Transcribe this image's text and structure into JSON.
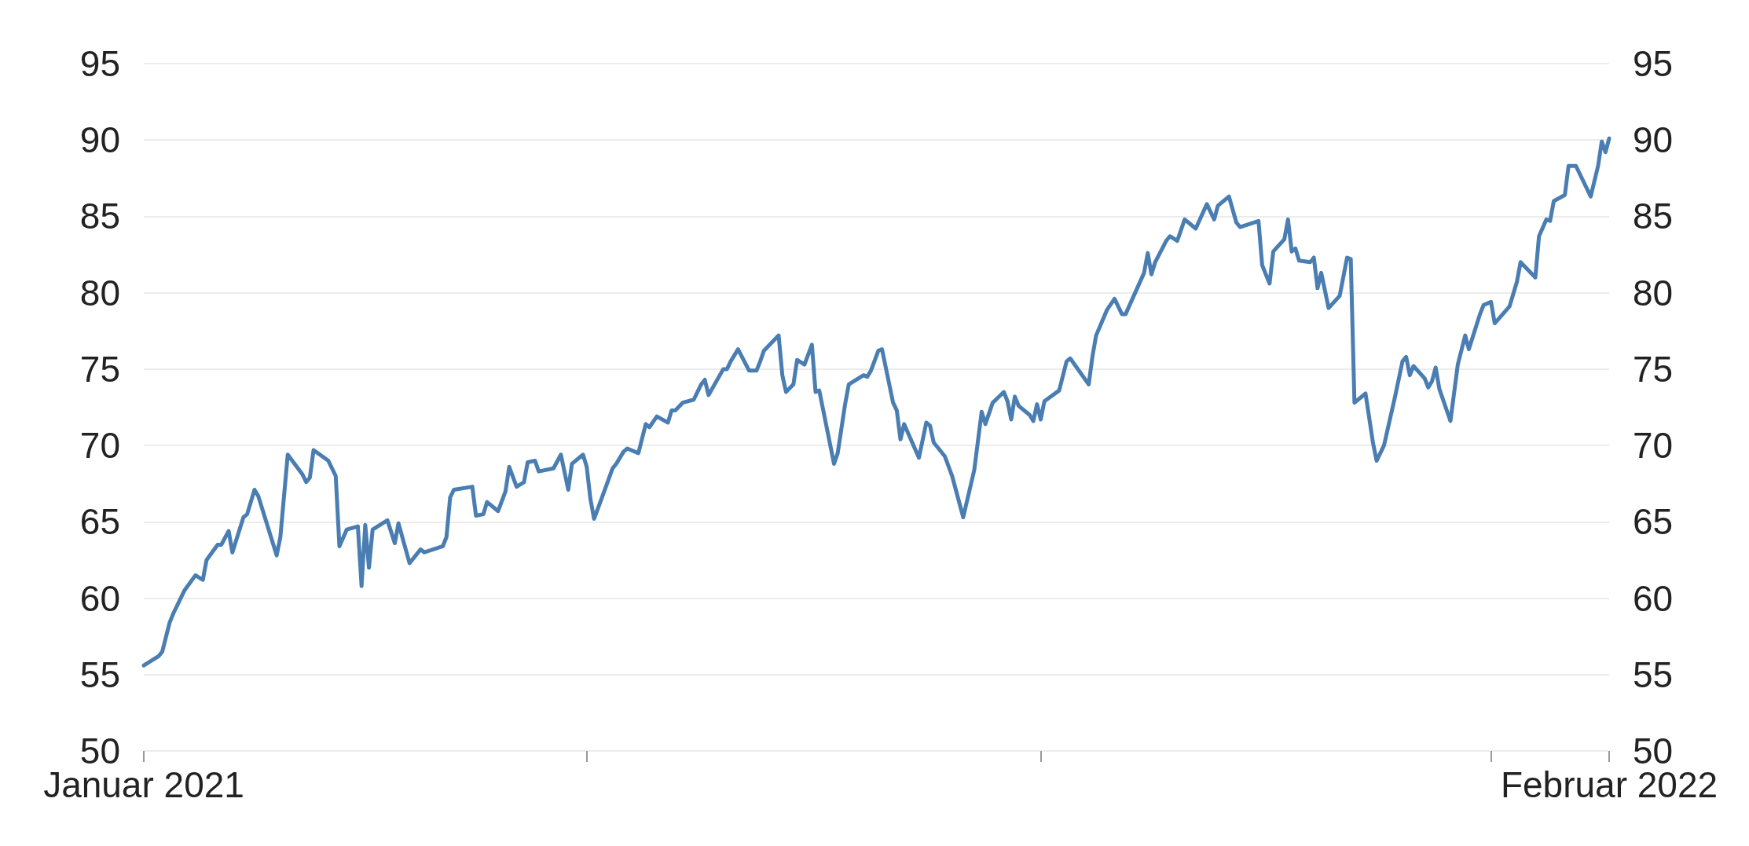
{
  "chart_data": {
    "type": "line",
    "x": [
      "2021-01-01",
      "2021-01-05",
      "2021-01-06",
      "2021-01-08",
      "2021-01-09",
      "2021-01-12",
      "2021-01-15",
      "2021-01-17",
      "2021-01-18",
      "2021-01-21",
      "2021-01-22",
      "2021-01-24",
      "2021-01-25",
      "2021-01-28",
      "2021-01-29",
      "2021-01-31",
      "2021-02-01",
      "2021-02-06",
      "2021-02-07",
      "2021-02-09",
      "2021-02-13",
      "2021-02-14",
      "2021-02-15",
      "2021-02-16",
      "2021-02-20",
      "2021-02-22",
      "2021-02-23",
      "2021-02-25",
      "2021-02-28",
      "2021-03-01",
      "2021-03-02",
      "2021-03-03",
      "2021-03-04",
      "2021-03-08",
      "2021-03-10",
      "2021-03-11",
      "2021-03-14",
      "2021-03-17",
      "2021-03-18",
      "2021-03-23",
      "2021-03-24",
      "2021-03-25",
      "2021-03-26",
      "2021-03-31",
      "2021-04-01",
      "2021-04-03",
      "2021-04-04",
      "2021-04-07",
      "2021-04-09",
      "2021-04-10",
      "2021-04-12",
      "2021-04-14",
      "2021-04-15",
      "2021-04-17",
      "2021-04-18",
      "2021-04-22",
      "2021-04-24",
      "2021-04-26",
      "2021-04-27",
      "2021-04-30",
      "2021-05-01",
      "2021-05-02",
      "2021-05-03",
      "2021-05-05",
      "2021-05-08",
      "2021-05-09",
      "2021-05-11",
      "2021-05-12",
      "2021-05-15",
      "2021-05-17",
      "2021-05-18",
      "2021-05-20",
      "2021-05-23",
      "2021-05-24",
      "2021-05-25",
      "2021-05-27",
      "2021-05-30",
      "2021-06-01",
      "2021-06-02",
      "2021-06-03",
      "2021-06-07",
      "2021-06-08",
      "2021-06-09",
      "2021-06-11",
      "2021-06-14",
      "2021-06-16",
      "2021-06-17",
      "2021-06-18",
      "2021-06-22",
      "2021-06-23",
      "2021-06-24",
      "2021-06-26",
      "2021-06-27",
      "2021-06-29",
      "2021-07-01",
      "2021-07-02",
      "2021-07-03",
      "2021-07-07",
      "2021-07-08",
      "2021-07-10",
      "2021-07-11",
      "2021-07-15",
      "2021-07-16",
      "2021-07-17",
      "2021-07-19",
      "2021-07-20",
      "2021-07-23",
      "2021-07-24",
      "2021-07-25",
      "2021-07-26",
      "2021-07-30",
      "2021-08-01",
      "2021-08-02",
      "2021-08-03",
      "2021-08-06",
      "2021-08-08",
      "2021-08-11",
      "2021-08-14",
      "2021-08-16",
      "2021-08-17",
      "2021-08-19",
      "2021-08-22",
      "2021-08-23",
      "2021-08-24",
      "2021-08-25",
      "2021-08-26",
      "2021-08-29",
      "2021-08-30",
      "2021-08-31",
      "2021-09-01",
      "2021-09-02",
      "2021-09-06",
      "2021-09-08",
      "2021-09-09",
      "2021-09-14",
      "2021-09-15",
      "2021-09-16",
      "2021-09-19",
      "2021-09-21",
      "2021-09-23",
      "2021-09-24",
      "2021-09-29",
      "2021-09-30",
      "2021-10-01",
      "2021-10-02",
      "2021-10-05",
      "2021-10-06",
      "2021-10-08",
      "2021-10-10",
      "2021-10-13",
      "2021-10-16",
      "2021-10-18",
      "2021-10-19",
      "2021-10-22",
      "2021-10-24",
      "2021-10-25",
      "2021-10-30",
      "2021-10-31",
      "2021-11-02",
      "2021-11-03",
      "2021-11-06",
      "2021-11-07",
      "2021-11-08",
      "2021-11-09",
      "2021-11-10",
      "2021-11-13",
      "2021-11-14",
      "2021-11-15",
      "2021-11-16",
      "2021-11-18",
      "2021-11-21",
      "2021-11-23",
      "2021-11-24",
      "2021-11-25",
      "2021-11-28",
      "2021-11-30",
      "2021-12-01",
      "2021-12-03",
      "2021-12-06",
      "2021-12-08",
      "2021-12-09",
      "2021-12-10",
      "2021-12-11",
      "2021-12-14",
      "2021-12-15",
      "2021-12-16",
      "2021-12-17",
      "2021-12-18",
      "2021-12-21",
      "2021-12-23",
      "2021-12-25",
      "2021-12-26",
      "2021-12-29",
      "2021-12-30",
      "2022-01-01",
      "2022-01-02",
      "2022-01-06",
      "2022-01-08",
      "2022-01-09",
      "2022-01-13",
      "2022-01-14",
      "2022-01-16",
      "2022-01-17",
      "2022-01-18",
      "2022-01-21",
      "2022-01-22",
      "2022-01-24",
      "2022-01-28",
      "2022-01-30",
      "2022-01-31",
      "2022-02-01",
      "2022-02-02"
    ],
    "series": [
      {
        "color": "#4a7db1",
        "values": [
          55.6,
          56.2,
          56.5,
          58.4,
          59,
          60.5,
          61.5,
          61.2,
          62.5,
          63.5,
          63.5,
          64.4,
          63,
          65.3,
          65.5,
          67.1,
          66.7,
          62.8,
          64,
          69.4,
          68.1,
          67.6,
          67.9,
          69.7,
          69,
          68,
          63.4,
          64.5,
          64.7,
          60.8,
          64.8,
          62,
          64.5,
          65.1,
          63.6,
          64.9,
          62.3,
          63.2,
          63,
          63.4,
          64,
          66.6,
          67.1,
          67.3,
          65.4,
          65.5,
          66.3,
          65.7,
          67,
          68.6,
          67.3,
          67.6,
          68.9,
          69,
          68.3,
          68.5,
          69.4,
          67.1,
          68.8,
          69.4,
          68.6,
          66.5,
          65.2,
          66.5,
          68.5,
          68.8,
          69.6,
          69.8,
          69.5,
          71.4,
          71.2,
          71.9,
          71.5,
          72.3,
          72.3,
          72.8,
          73,
          74,
          74.3,
          73.3,
          75,
          75,
          75.5,
          76.3,
          74.9,
          74.9,
          75.5,
          76.2,
          77.2,
          74.6,
          73.5,
          74,
          75.6,
          75.3,
          76.6,
          73.5,
          73.6,
          68.8,
          69.5,
          72.7,
          74,
          74.6,
          74.5,
          74.9,
          76.2,
          76.3,
          72.8,
          72.3,
          70.4,
          71.4,
          69.2,
          71.5,
          71.3,
          70.2,
          69.3,
          68,
          65.3,
          68.4,
          72.2,
          71.4,
          72.8,
          73.5,
          72.9,
          71.7,
          73.2,
          72.6,
          72,
          71.6,
          72.7,
          71.7,
          72.9,
          73.6,
          75.5,
          75.7,
          74,
          75.8,
          77.2,
          78.9,
          79.6,
          78.6,
          78.6,
          81.3,
          82.6,
          81.2,
          82,
          83.4,
          83.7,
          83.4,
          84.8,
          84.2,
          85.8,
          84.8,
          85.7,
          86.3,
          84.6,
          84.3,
          84.7,
          81.8,
          80.6,
          82.7,
          83.5,
          84.8,
          82.7,
          82.9,
          82.1,
          82,
          82.3,
          80.3,
          81.3,
          79,
          79.8,
          82.3,
          82.2,
          72.8,
          73.4,
          70.2,
          69,
          70,
          73.2,
          75.5,
          75.8,
          74.6,
          75.2,
          74.4,
          73.8,
          74.2,
          75.1,
          73.7,
          71.6,
          75.3,
          77.2,
          76.3,
          78.6,
          79.2,
          79.4,
          78,
          79.1,
          80.7,
          82,
          81,
          83.7,
          84.8,
          84.7,
          86,
          86.4,
          88.3,
          88.3,
          86.3,
          88.3,
          89.9,
          89.2,
          90.1
        ]
      }
    ],
    "xlim": [
      "2021-01-01",
      "2022-02-02"
    ],
    "xticks": [
      {
        "value": "2021-01-01",
        "label": "Januar 2021"
      },
      {
        "value": "2021-05-01",
        "label": null
      },
      {
        "value": "2021-09-01",
        "label": null
      },
      {
        "value": "2022-01-01",
        "label": null
      },
      {
        "value": "2022-02-02",
        "label": "Februar 2022"
      }
    ],
    "ylim": [
      50,
      95
    ],
    "yticks": [
      50,
      55,
      60,
      65,
      70,
      75,
      80,
      85,
      90,
      95
    ],
    "y2lim": [
      50,
      95
    ],
    "y2ticks": [
      50,
      55,
      60,
      65,
      70,
      75,
      80,
      85,
      90,
      95
    ],
    "grid": "y",
    "marker": "none",
    "line_style": "solid"
  }
}
